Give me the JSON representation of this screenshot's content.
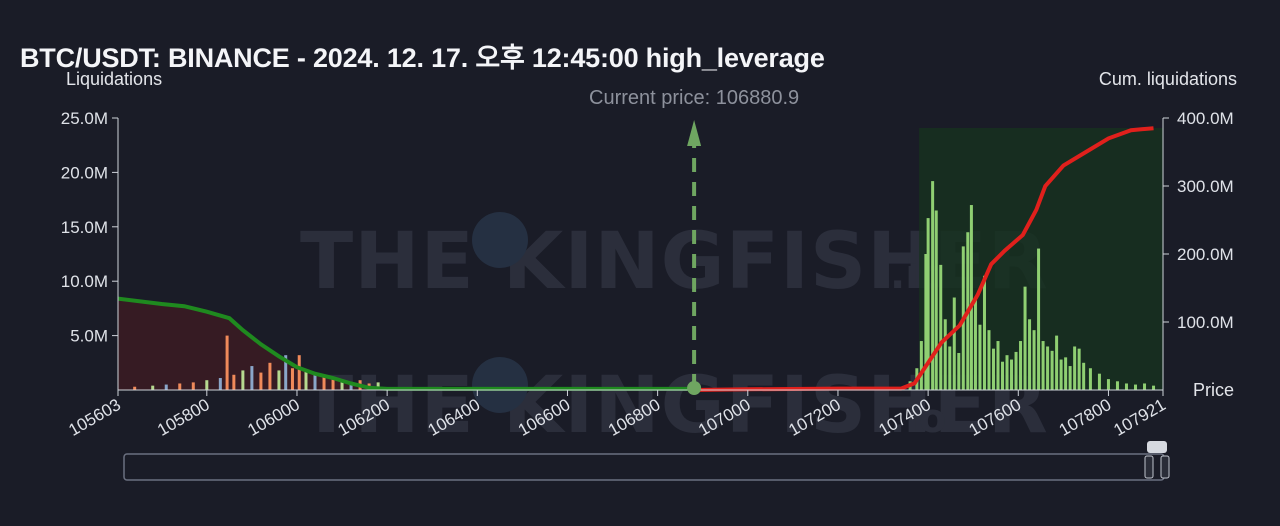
{
  "title": "BTC/USDT: BINANCE - 2024. 12. 17. 오후 12:45:00 high_leverage",
  "watermark": {
    "text": "THE KINGFISHER",
    "suffix": ".io"
  },
  "colors": {
    "background": "#1a1c27",
    "short_cum_line": "#1f8a1f",
    "long_cum_line": "#e0201c",
    "short_fill": "#3a1c24",
    "long_fill": "#17321f",
    "bar_left_orange": "#f08a5a",
    "bar_left_green": "#b6d98f",
    "bar_left_blue": "#8aa6c9",
    "bar_right": "#8fcf72",
    "current_price_line": "#6fa661"
  },
  "chart_data": {
    "type": "bar",
    "title": "BTC/USDT: BINANCE - 2024. 12. 17. 오후 12:45:00 high_leverage",
    "ylabel": "Liquidations",
    "y2label": "Cum. liquidations",
    "xlabel": "Price",
    "xlim": [
      105603,
      107921
    ],
    "ylim": [
      0,
      25000000
    ],
    "y2lim": [
      0,
      400000000
    ],
    "x_ticks": [
      "105603",
      "105800",
      "106000",
      "106200",
      "106400",
      "106600",
      "106800",
      "107000",
      "107200",
      "107400",
      "107600",
      "107800",
      "107921"
    ],
    "y_ticks": [
      "5.0M",
      "10.0M",
      "15.0M",
      "20.0M",
      "25.0M"
    ],
    "y2_ticks": [
      "100.0M",
      "200.0M",
      "300.0M",
      "400.0M"
    ],
    "current_price": {
      "label": "Current price: 106880.9",
      "value": 106880.9
    },
    "grid": false,
    "short_bars": [
      [
        105640,
        0.3
      ],
      [
        105680,
        0.4
      ],
      [
        105710,
        0.5
      ],
      [
        105740,
        0.6
      ],
      [
        105770,
        0.7
      ],
      [
        105800,
        0.9
      ],
      [
        105830,
        1.1
      ],
      [
        105845,
        5.0
      ],
      [
        105860,
        1.4
      ],
      [
        105880,
        1.8
      ],
      [
        105900,
        2.2
      ],
      [
        105920,
        1.6
      ],
      [
        105940,
        2.5
      ],
      [
        105960,
        1.8
      ],
      [
        105975,
        3.2
      ],
      [
        105990,
        2.0
      ],
      [
        106005,
        3.2
      ],
      [
        106020,
        1.9
      ],
      [
        106040,
        1.5
      ],
      [
        106060,
        1.2
      ],
      [
        106080,
        1.0
      ],
      [
        106100,
        0.9
      ],
      [
        106120,
        0.7
      ],
      [
        106140,
        0.9
      ],
      [
        106160,
        0.6
      ],
      [
        106180,
        0.7
      ]
    ],
    "long_bars": [
      [
        107360,
        0.8
      ],
      [
        107375,
        2.0
      ],
      [
        107385,
        4.5
      ],
      [
        107395,
        12.5
      ],
      [
        107400,
        15.8
      ],
      [
        107410,
        19.2
      ],
      [
        107418,
        16.5
      ],
      [
        107428,
        11.5
      ],
      [
        107438,
        6.5
      ],
      [
        107448,
        4.0
      ],
      [
        107458,
        8.5
      ],
      [
        107468,
        3.4
      ],
      [
        107478,
        13.2
      ],
      [
        107488,
        14.5
      ],
      [
        107496,
        17.0
      ],
      [
        107505,
        8.5
      ],
      [
        107515,
        6.0
      ],
      [
        107525,
        10.5
      ],
      [
        107535,
        5.5
      ],
      [
        107545,
        3.8
      ],
      [
        107555,
        4.5
      ],
      [
        107565,
        2.6
      ],
      [
        107575,
        3.2
      ],
      [
        107585,
        2.8
      ],
      [
        107595,
        3.5
      ],
      [
        107605,
        4.5
      ],
      [
        107615,
        9.5
      ],
      [
        107625,
        6.5
      ],
      [
        107635,
        5.5
      ],
      [
        107645,
        13.0
      ],
      [
        107655,
        4.5
      ],
      [
        107665,
        4.0
      ],
      [
        107675,
        3.6
      ],
      [
        107685,
        5.0
      ],
      [
        107695,
        2.8
      ],
      [
        107705,
        3.0
      ],
      [
        107715,
        2.2
      ],
      [
        107725,
        4.0
      ],
      [
        107735,
        3.8
      ],
      [
        107745,
        2.5
      ],
      [
        107760,
        2.0
      ],
      [
        107780,
        1.5
      ],
      [
        107800,
        1.0
      ],
      [
        107820,
        0.8
      ],
      [
        107840,
        0.6
      ],
      [
        107860,
        0.5
      ],
      [
        107880,
        0.6
      ],
      [
        107900,
        0.4
      ]
    ],
    "short_cum_line": {
      "name": "Cum. liquidations (short side)",
      "points": [
        [
          105603,
          8.4
        ],
        [
          105700,
          7.9
        ],
        [
          105750,
          7.7
        ],
        [
          105800,
          7.2
        ],
        [
          105850,
          6.6
        ],
        [
          105880,
          5.5
        ],
        [
          105920,
          4.2
        ],
        [
          105960,
          3.1
        ],
        [
          106000,
          2.1
        ],
        [
          106040,
          1.5
        ],
        [
          106080,
          1.1
        ],
        [
          106120,
          0.6
        ],
        [
          106160,
          0.2
        ],
        [
          106200,
          0.1
        ],
        [
          106880,
          0.1
        ]
      ]
    },
    "long_cum_line": {
      "name": "Cum. liquidations (long side)",
      "points": [
        [
          106880,
          0
        ],
        [
          107000,
          1
        ],
        [
          107200,
          2
        ],
        [
          107340,
          2
        ],
        [
          107370,
          10
        ],
        [
          107400,
          40
        ],
        [
          107430,
          70
        ],
        [
          107470,
          95
        ],
        [
          107510,
          140
        ],
        [
          107540,
          185
        ],
        [
          107570,
          205
        ],
        [
          107610,
          228
        ],
        [
          107640,
          265
        ],
        [
          107660,
          300
        ],
        [
          107700,
          330
        ],
        [
          107750,
          350
        ],
        [
          107800,
          370
        ],
        [
          107850,
          382
        ],
        [
          107900,
          385
        ]
      ]
    }
  }
}
